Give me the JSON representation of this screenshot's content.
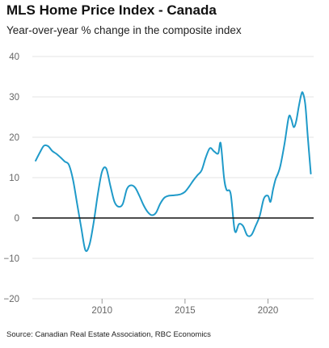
{
  "chart_data": {
    "type": "line",
    "title": "MLS Home Price Index - Canada",
    "subtitle": "Year-over-year % change in the composite index",
    "source": "Source: Canadian Real Estate Association, RBC Economics",
    "xlabel": "",
    "ylabel": "",
    "xlim": [
      2005.8,
      2022.75
    ],
    "ylim": [
      -20,
      40
    ],
    "yticks": [
      -20,
      -10,
      0,
      10,
      20,
      30,
      40
    ],
    "ytick_labels": [
      "−20",
      "−10",
      "0",
      "10",
      "20",
      "30",
      "40"
    ],
    "xticks": [
      2010,
      2015,
      2020
    ],
    "xtick_labels": [
      "2010",
      "2015",
      "2020"
    ],
    "grid": "horizontal",
    "line_color": "#1f9ac9",
    "zero_line_color": "#111111",
    "series": [
      {
        "x": [
          2006.0,
          2006.25,
          2006.5,
          2006.75,
          2007.0,
          2007.25,
          2007.5,
          2007.75,
          2008.0,
          2008.25,
          2008.5,
          2008.75,
          2009.0,
          2009.25,
          2009.5,
          2009.75,
          2010.0,
          2010.25,
          2010.5,
          2010.75,
          2011.0,
          2011.25,
          2011.5,
          2011.75,
          2012.0,
          2012.25,
          2012.5,
          2012.75,
          2013.0,
          2013.25,
          2013.5,
          2013.75,
          2014.0,
          2014.25,
          2014.5,
          2014.75,
          2015.0,
          2015.25,
          2015.5,
          2015.75,
          2016.0,
          2016.25,
          2016.5,
          2016.75,
          2017.0,
          2017.15,
          2017.35,
          2017.5,
          2017.75,
          2018.0,
          2018.25,
          2018.5,
          2018.75,
          2019.0,
          2019.25,
          2019.5,
          2019.75,
          2020.0,
          2020.15,
          2020.3,
          2020.45,
          2020.6,
          2020.75,
          2021.0,
          2021.25,
          2021.4,
          2021.55,
          2021.7,
          2021.85,
          2022.0,
          2022.1,
          2022.25,
          2022.4,
          2022.58
        ],
        "y": [
          14.2,
          16.2,
          17.9,
          17.8,
          16.6,
          15.9,
          15.0,
          14.0,
          13.2,
          9.5,
          3.5,
          -2.5,
          -8.0,
          -6.5,
          -1.0,
          6.0,
          11.5,
          12.3,
          8.0,
          4.0,
          2.8,
          3.5,
          7.2,
          8.1,
          7.5,
          5.5,
          3.2,
          1.5,
          0.7,
          1.3,
          3.5,
          5.0,
          5.5,
          5.6,
          5.7,
          5.9,
          6.5,
          7.8,
          9.3,
          10.6,
          11.8,
          15.0,
          17.3,
          16.5,
          16.0,
          18.5,
          10.0,
          7.0,
          6.0,
          -3.2,
          -1.5,
          -2.0,
          -4.3,
          -4.2,
          -2.0,
          0.5,
          4.8,
          5.5,
          4.0,
          7.0,
          9.5,
          11.0,
          13.0,
          18.5,
          25.0,
          24.5,
          22.5,
          24.0,
          27.5,
          30.5,
          31.0,
          28.0,
          20.0,
          11.0
        ]
      }
    ]
  }
}
